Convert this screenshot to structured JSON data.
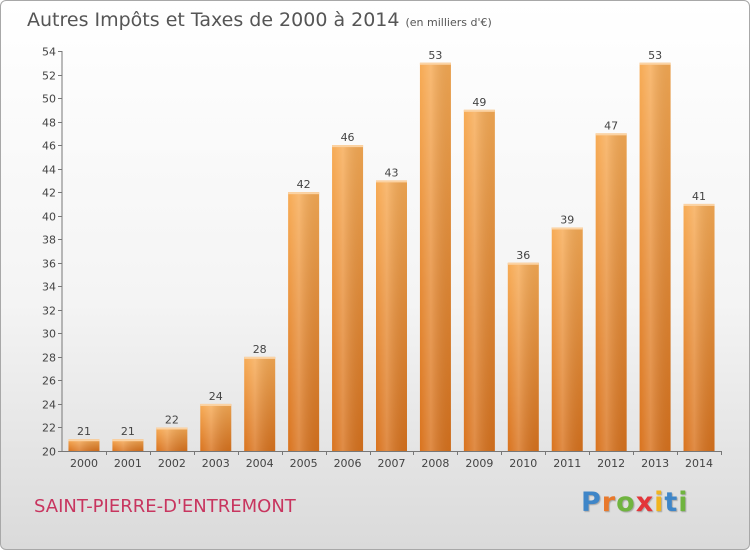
{
  "header": {
    "title": "Autres Impôts et Taxes de 2000 à 2014",
    "unit_note": "(en milliers d'€)"
  },
  "footer": {
    "commune": "SAINT-PIERRE-D'ENTREMONT",
    "logo": {
      "letters": [
        "P",
        "r",
        "o",
        "x",
        "i",
        "t",
        "i"
      ],
      "colors": [
        "#3f86c8",
        "#e8792c",
        "#6fb43f",
        "#e3363a",
        "#f0b41f",
        "#3f86c8",
        "#6fb43f"
      ]
    }
  },
  "chart_data": {
    "type": "bar",
    "categories": [
      "2000",
      "2001",
      "2002",
      "2003",
      "2004",
      "2005",
      "2006",
      "2007",
      "2008",
      "2009",
      "2010",
      "2011",
      "2012",
      "2013",
      "2014"
    ],
    "values": [
      21,
      21,
      22,
      24,
      28,
      42,
      46,
      43,
      53,
      49,
      36,
      39,
      47,
      53,
      41
    ],
    "data_labels": [
      "21",
      "21",
      "22",
      "24",
      "28",
      "42",
      "46",
      "43",
      "53",
      "49",
      "36",
      "39",
      "47",
      "53",
      "41"
    ],
    "ylim": [
      20,
      54
    ],
    "yticks": [
      "20",
      "22",
      "24",
      "26",
      "28",
      "30",
      "32",
      "34",
      "36",
      "38",
      "40",
      "42",
      "44",
      "46",
      "48",
      "50",
      "52",
      "54"
    ],
    "grid": false,
    "bar_color": "#f0923a"
  }
}
